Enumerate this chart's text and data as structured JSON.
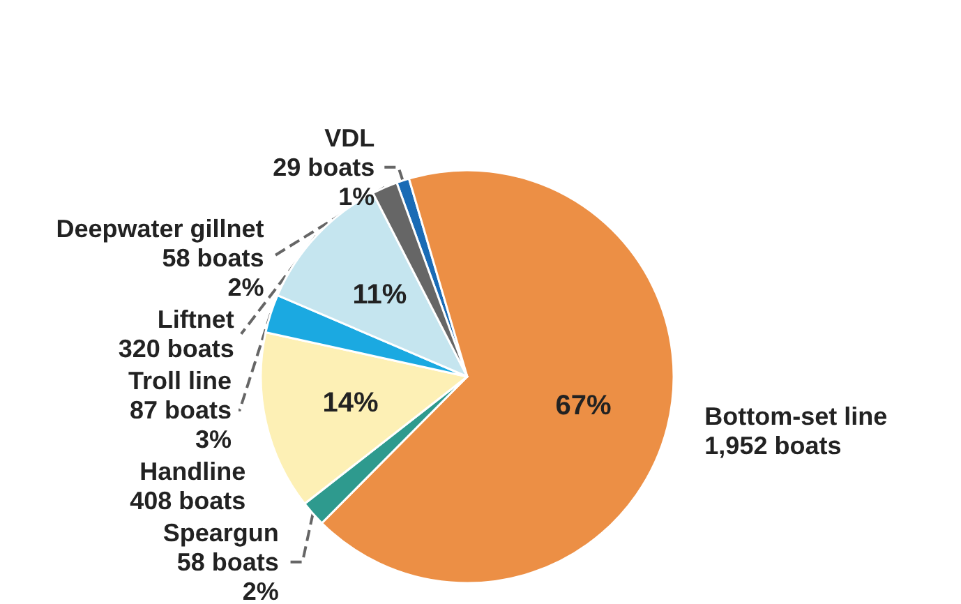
{
  "chart_data": {
    "type": "pie",
    "categories": [
      "VDL\n29 boats",
      "Bottom-set line\n1,952 boats",
      "Speargun\n58 boats",
      "Handline\n408 boats",
      "Troll line\n87 boats",
      "Liftnet\n320 boats",
      "Deepwater gillnet\n58 boats"
    ],
    "values": [
      1,
      67,
      2,
      14,
      3,
      11,
      2
    ],
    "value_labels": [
      "1%",
      "67%",
      "2%",
      "14%",
      "3%",
      "11%",
      "2%"
    ],
    "colors": [
      "#1a6bb5",
      "#ec8f45",
      "#2e9a8e",
      "#fdf0b5",
      "#1ba9e1",
      "#c5e5ef",
      "#666666"
    ]
  }
}
